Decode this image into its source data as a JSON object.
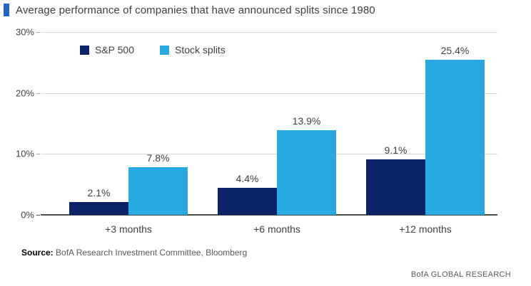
{
  "title": {
    "text": "Average performance of companies that have announced splits since 1980"
  },
  "colors": {
    "title_marker": "#2265c8",
    "sp500": "#0a2266",
    "stock_splits": "#29a9e1",
    "gridline": "#d9d9d9",
    "axis_line": "#4d4d4d",
    "text": "#404040"
  },
  "legend": {
    "items": [
      {
        "label": "S&P 500",
        "color": "#0a2266"
      },
      {
        "label": "Stock splits",
        "color": "#29a9e1"
      }
    ]
  },
  "y_axis": {
    "tick_labels": [
      "30%",
      "20%",
      "10%",
      "0%"
    ]
  },
  "source": {
    "prefix": "Source:",
    "text": " BofA Research Investment Committee, Bloomberg"
  },
  "footer": {
    "brand": "BofA GLOBAL RESEARCH"
  },
  "chart_data": {
    "type": "bar",
    "title": "Average performance of companies that have announced splits since 1980",
    "categories": [
      "+3 months",
      "+6 months",
      "+12 months"
    ],
    "series": [
      {
        "name": "S&P 500",
        "color": "#0a2266",
        "values": [
          2.1,
          4.4,
          9.1
        ],
        "labels": [
          "2.1%",
          "4.4%",
          "9.1%"
        ]
      },
      {
        "name": "Stock splits",
        "color": "#29a9e1",
        "values": [
          7.8,
          13.9,
          25.4
        ],
        "labels": [
          "7.8%",
          "13.9%",
          "25.4%"
        ]
      }
    ],
    "xlabel": "",
    "ylabel": "",
    "ylim": [
      0,
      30
    ],
    "y_ticks": [
      0,
      10,
      20,
      30
    ],
    "grid": true,
    "legend_position": "top-left-inside",
    "source": "BofA Research Investment Committee, Bloomberg"
  }
}
